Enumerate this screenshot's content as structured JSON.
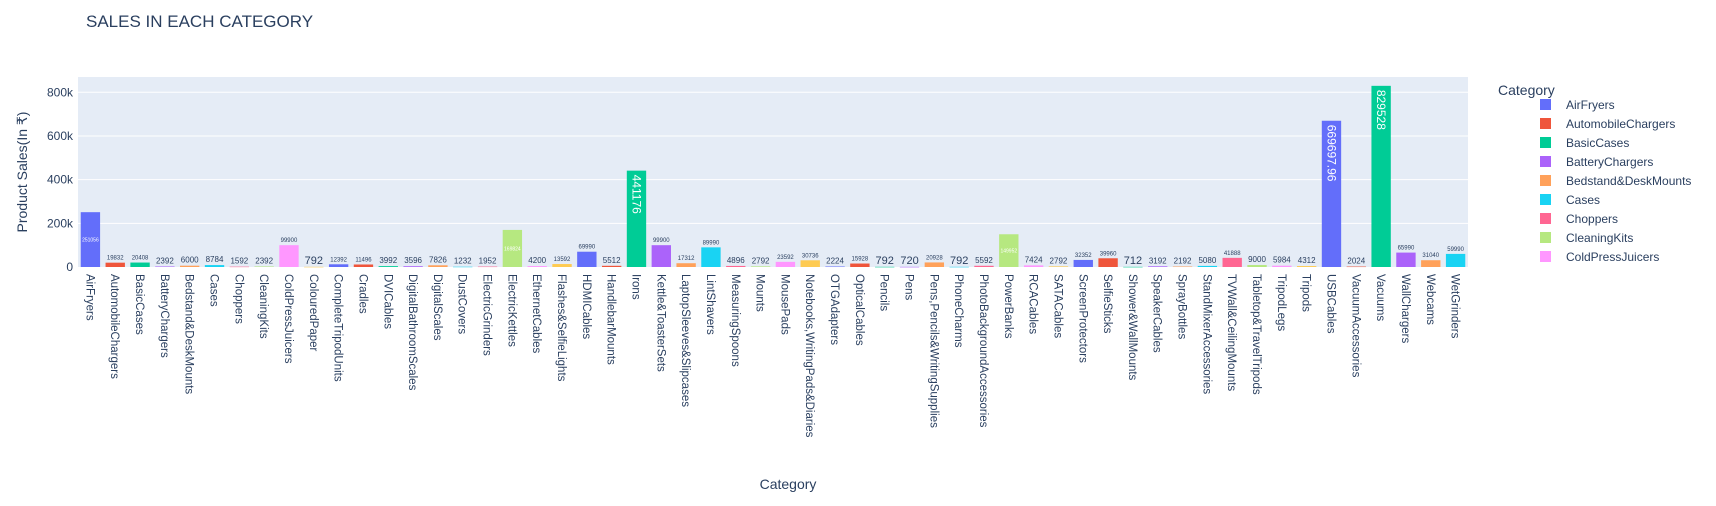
{
  "chart_data": {
    "type": "bar",
    "title": "SALES IN EACH CATEGORY",
    "xlabel": "Category",
    "ylabel": "Product Sales(In ₹)",
    "ylim": [
      0,
      870000
    ],
    "yticks": [
      0,
      200000,
      400000,
      600000,
      800000
    ],
    "ytick_labels": [
      "0",
      "200k",
      "400k",
      "600k",
      "800k"
    ],
    "legend_title": "Category",
    "legend_placement": "right",
    "grid": true,
    "categories": [
      "AirFryers",
      "AutomobileChargers",
      "BasicCases",
      "BatteryChargers",
      "Bedstand&DeskMounts",
      "Cases",
      "Choppers",
      "CleaningKits",
      "ColdPressJuicers",
      "ColouredPaper",
      "CompleteTripodUnits",
      "Cradles",
      "DVICables",
      "DigitalBathroomScales",
      "DigitalScales",
      "DustCovers",
      "ElectricGrinders",
      "ElectricKettles",
      "EthernetCables",
      "Flashes&SelfieLights",
      "HDMICables",
      "HandlebarMounts",
      "Irons",
      "Kettle&ToasterSets",
      "LaptopSleeves&Slipcases",
      "LintShavers",
      "MeasuringSpoons",
      "Mounts",
      "MousePads",
      "Notebooks,WritingPads&Diaries",
      "OTGAdapters",
      "OpticalCables",
      "Pencils",
      "Pens",
      "Pens,Pencils&WritingSupplies",
      "PhoneCharms",
      "PhotoBackgroundAccessories",
      "PowerBanks",
      "RCACables",
      "SATACables",
      "ScreenProtectors",
      "SelfieSticks",
      "Shower&WallMounts",
      "SpeakerCables",
      "SprayBottles",
      "StandMixerAccessories",
      "TVWall&CeilingMounts",
      "Tabletop&TravelTripods",
      "TripodLegs",
      "Tripods",
      "USBCables",
      "VacuumAccessories",
      "Vacuums",
      "WallChargers",
      "Webcams",
      "WetGrinders"
    ],
    "values": [
      251056,
      19832,
      20408,
      2392,
      6000,
      8784,
      1592,
      2392,
      99900,
      792,
      12392,
      11496,
      3992,
      3596,
      7826,
      1232,
      1952,
      169824,
      4200,
      13592,
      69990,
      5512,
      441176,
      99900,
      17312,
      89990,
      4896,
      2792,
      23592,
      30736,
      2224,
      15928,
      792,
      720,
      20928,
      792,
      5592,
      149952,
      7424,
      2792,
      32352,
      39960,
      712,
      3192,
      2192,
      5080,
      41888,
      9000,
      5984,
      4312,
      669697.96,
      2024,
      829528,
      65990,
      31040,
      59990
    ],
    "labels": [
      "251056",
      "19832",
      "20408",
      "2392",
      "6000",
      "8784",
      "1592",
      "2392",
      "99900",
      "792",
      "12392",
      "11496",
      "3992",
      "3596",
      "7826",
      "1232",
      "1952",
      "169824",
      "4200",
      "13592",
      "69990",
      "5512",
      "441176",
      "99900",
      "17312",
      "89990",
      "4896",
      "2792",
      "23592",
      "30736",
      "2224",
      "15928",
      "792",
      "720",
      "20928",
      "792",
      "5592",
      "149952",
      "7424",
      "2792",
      "32352",
      "39960",
      "712",
      "3192",
      "2192",
      "5080",
      "41888",
      "9000",
      "5984",
      "4312",
      "669697.96",
      "2024",
      "829528",
      "65990",
      "31040",
      "59990"
    ],
    "palette": [
      "#636efa",
      "#EF553B",
      "#00cc96",
      "#ab63fa",
      "#FFA15A",
      "#19d3f3",
      "#FF6692",
      "#B6E880",
      "#FF97FF",
      "#FECB52"
    ],
    "colors": {
      "plot_bg": "#e5ecf6",
      "grid": "#ffffff",
      "text": "#2a3f5f"
    }
  }
}
